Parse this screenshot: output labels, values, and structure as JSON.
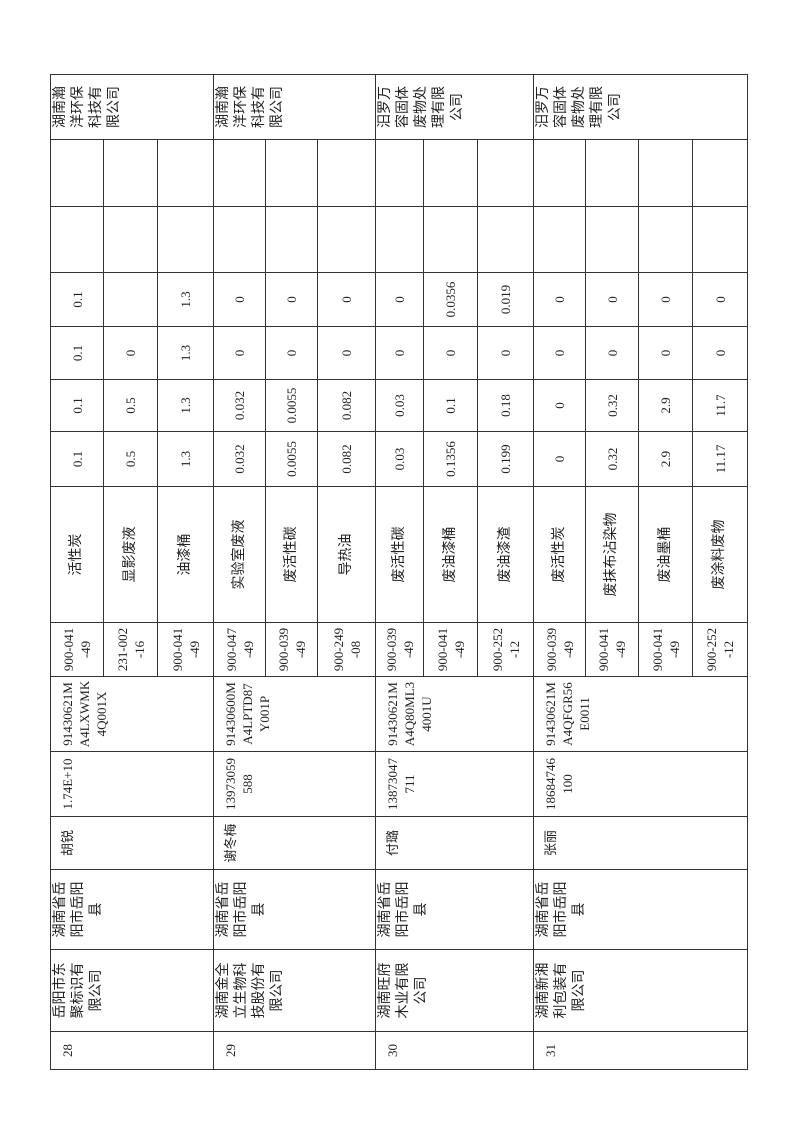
{
  "groups": [
    {
      "serial": "28",
      "company": "岳阳市东聚标识有限公司",
      "address": "湖南省岳阳市岳阳县",
      "contact": "胡锐",
      "phone": "1.74E+10",
      "credit_code": "91430621MA4LXWMK4Q001X",
      "receiver": "湖南瀚洋环保科技有限公司",
      "items": [
        {
          "code": "900-041-49",
          "name": "活性炭",
          "v1": "0.1",
          "v2": "0.1",
          "v3": "0.1",
          "v4": "0.1"
        },
        {
          "code": "231-002-16",
          "name": "显影废液",
          "v1": "0.5",
          "v2": "0.5",
          "v3": "0",
          "v4": ""
        },
        {
          "code": "900-041-49",
          "name": "油漆桶",
          "v1": "1.3",
          "v2": "1.3",
          "v3": "1.3",
          "v4": "1.3"
        }
      ]
    },
    {
      "serial": "29",
      "company": "湖南金全立生物科技股份有限公司",
      "address": "湖南省岳阳市岳阳县",
      "contact": "谢冬梅",
      "phone": "13973059588",
      "credit_code": "91430600MA4LPTD87Y001P",
      "receiver": "湖南瀚洋环保科技有限公司",
      "items": [
        {
          "code": "900-047-49",
          "name": "实验室废液",
          "v1": "0.032",
          "v2": "0.032",
          "v3": "0",
          "v4": "0"
        },
        {
          "code": "900-039-49",
          "name": "废活性碳",
          "v1": "0.0055",
          "v2": "0.0055",
          "v3": "0",
          "v4": "0"
        },
        {
          "code": "900-249-08",
          "name": "导热油",
          "v1": "0.082",
          "v2": "0.082",
          "v3": "0",
          "v4": "0"
        }
      ]
    },
    {
      "serial": "30",
      "company": "湖南旺府木业有限公司",
      "address": "湖南省岳阳市岳阳县",
      "contact": "付璐",
      "phone": "13873047711",
      "credit_code": "91430621MA4Q80ML34001U",
      "receiver": "汨罗万容固体废物处理有限公司",
      "items": [
        {
          "code": "900-039-49",
          "name": "废活性碳",
          "v1": "0.03",
          "v2": "0.03",
          "v3": "0",
          "v4": "0"
        },
        {
          "code": "900-041-49",
          "name": "废油漆桶",
          "v1": "0.1356",
          "v2": "0.1",
          "v3": "0",
          "v4": "0.0356"
        },
        {
          "code": "900-252-12",
          "name": "废油漆渣",
          "v1": "0.199",
          "v2": "0.18",
          "v3": "0",
          "v4": "0.019"
        }
      ]
    },
    {
      "serial": "31",
      "company": "湖南新湘利包装有限公司",
      "address": "湖南省岳阳市岳阳县",
      "contact": "张丽",
      "phone": "18684746100",
      "credit_code": "91430621MA4QFGR56E0011",
      "receiver": "汨罗万容固体废物处理有限公司",
      "items": [
        {
          "code": "900-039-49",
          "name": "废活性炭",
          "v1": "0",
          "v2": "0",
          "v3": "0",
          "v4": "0"
        },
        {
          "code": "900-041-49",
          "name": "废抹布沾染物",
          "v1": "0.32",
          "v2": "0.32",
          "v3": "0",
          "v4": "0"
        },
        {
          "code": "900-041-49",
          "name": "废油墨桶",
          "v1": "2.9",
          "v2": "2.9",
          "v3": "0",
          "v4": "0"
        },
        {
          "code": "900-252-12",
          "name": "废涂料废物",
          "v1": "11.17",
          "v2": "11.7",
          "v3": "0",
          "v4": "0"
        }
      ]
    }
  ]
}
